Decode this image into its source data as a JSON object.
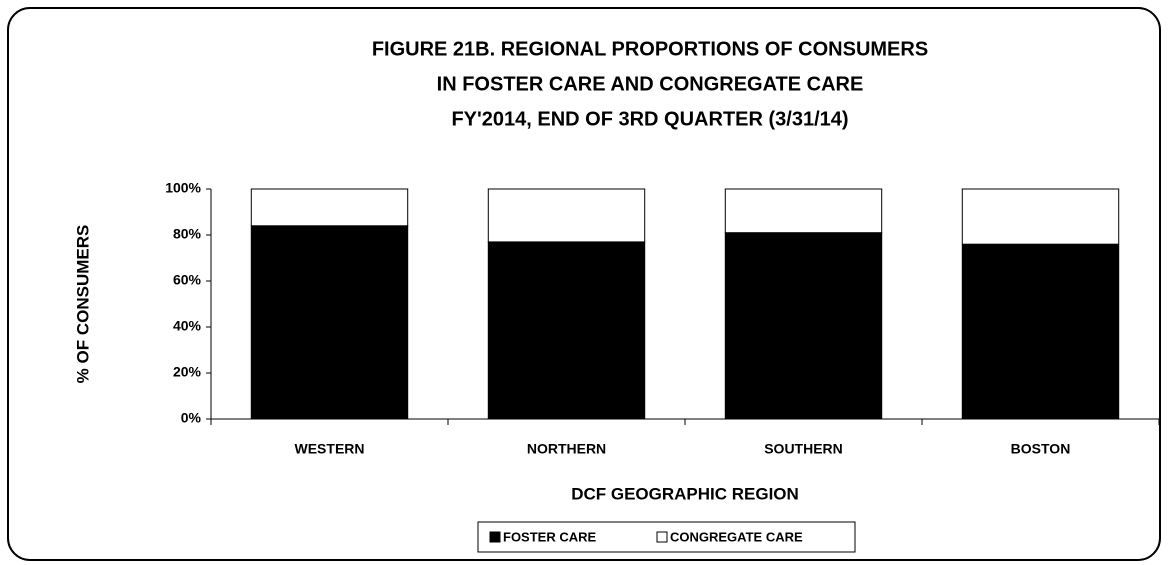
{
  "chart_data": {
    "type": "stacked_bar",
    "title": [
      "FIGURE 21B. REGIONAL PROPORTIONS OF CONSUMERS",
      "IN FOSTER CARE AND CONGREGATE CARE",
      "FY'2014, END OF 3RD QUARTER (3/31/14)"
    ],
    "x_label": "DCF GEOGRAPHIC REGION",
    "y_label": "% OF CONSUMERS",
    "categories": [
      "WESTERN",
      "NORTHERN",
      "SOUTHERN",
      "BOSTON"
    ],
    "series": [
      {
        "name": "FOSTER CARE",
        "color": "#000000",
        "values": [
          84,
          77,
          81,
          76
        ]
      },
      {
        "name": "CONGREGATE CARE",
        "color": "#ffffff",
        "values": [
          16,
          23,
          19,
          24
        ]
      }
    ],
    "ylim": [
      0,
      100
    ],
    "yticks": [
      {
        "value": 0,
        "label": "0%"
      },
      {
        "value": 20,
        "label": "20%"
      },
      {
        "value": 40,
        "label": "40%"
      },
      {
        "value": 60,
        "label": "60%"
      },
      {
        "value": 80,
        "label": "80%"
      },
      {
        "value": 100,
        "label": "100%"
      }
    ],
    "legend": "bottom"
  }
}
